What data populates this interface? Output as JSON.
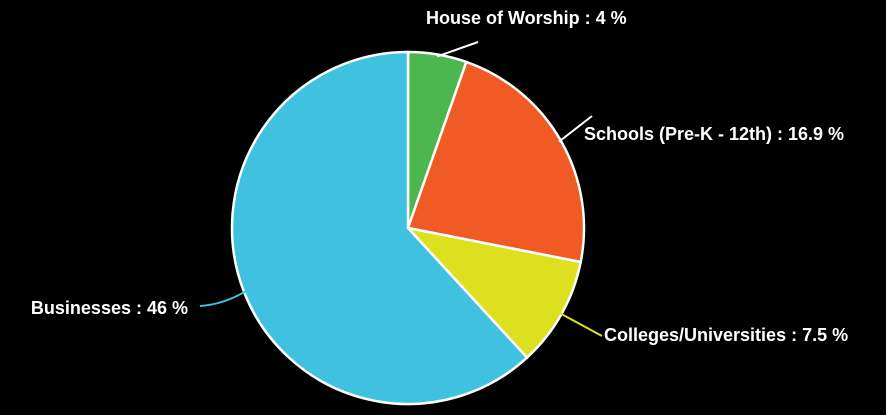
{
  "chart_data": {
    "type": "pie",
    "title": "",
    "slices": [
      {
        "label": "House of Worship",
        "value": 4,
        "display": "House of Worship : 4 %",
        "color": "#4db74f"
      },
      {
        "label": "Schools (Pre-K - 12th)",
        "value": 16.9,
        "display": "Schools (Pre-K - 12th) : 16.9 %",
        "color": "#f05a24"
      },
      {
        "label": "Colleges/Universities",
        "value": 7.5,
        "display": "Colleges/Universities : 7.5 %",
        "color": "#dde01f"
      },
      {
        "label": "Businesses",
        "value": 46,
        "display": "Businesses : 46 %",
        "color": "#40c1e0"
      }
    ],
    "start_angle": "12 o'clock",
    "direction": "clockwise",
    "label_color": "#ffffff",
    "background": "#000000",
    "slice_border": "#ffffff"
  }
}
